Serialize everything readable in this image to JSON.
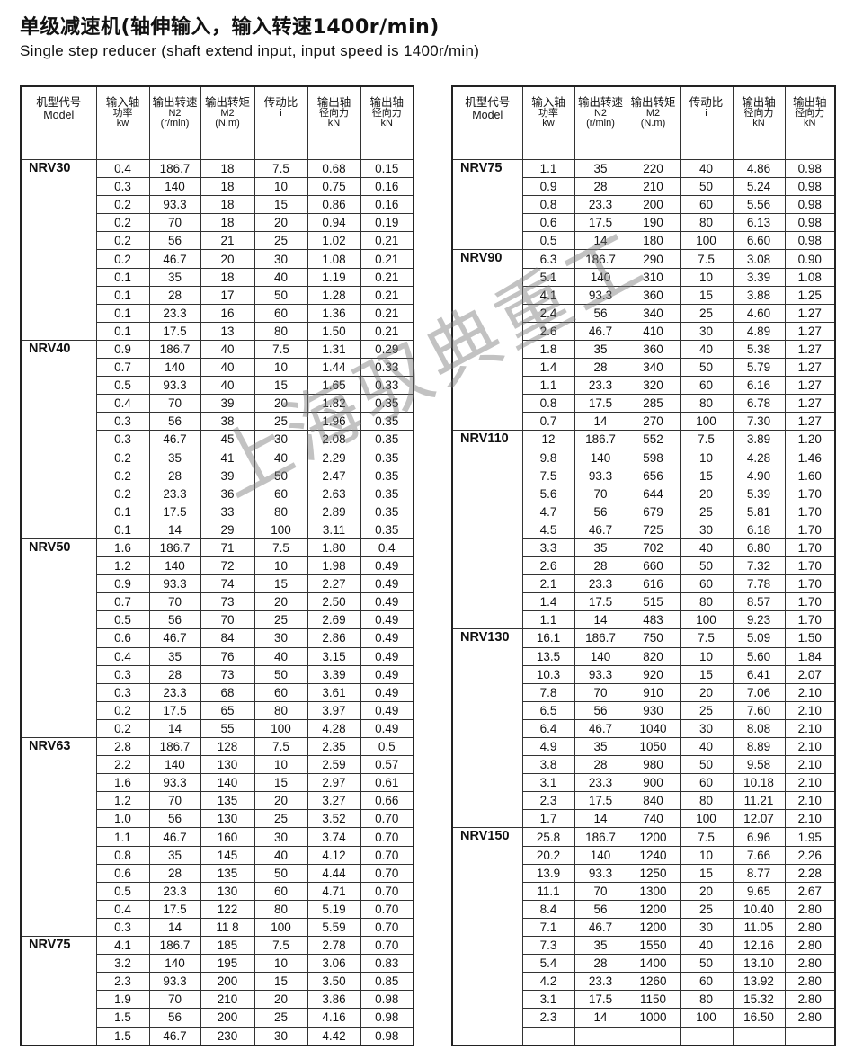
{
  "title": "单级减速机(轴伸输入，输入转速1400r/min)",
  "subtitle": "Single step reducer (shaft extend input,  input speed is 1400r/min)",
  "watermark": "上海驭典重工",
  "headers": [
    {
      "line1": "机型代号",
      "line2": "Model",
      "line3": ""
    },
    {
      "line1": "输入轴",
      "line2": "功率",
      "line3": "kw"
    },
    {
      "line1": "输出转速",
      "line2": "N2",
      "line3": "(r/min)"
    },
    {
      "line1": "输出转矩",
      "line2": "M2",
      "line3": "(N.m)"
    },
    {
      "line1": "传动比",
      "line2": "i",
      "line3": ""
    },
    {
      "line1": "输出轴",
      "line2": "径向力",
      "line3": "kN"
    },
    {
      "line1": "输出轴",
      "line2": "径向力",
      "line3": "kN"
    }
  ],
  "tables": [
    {
      "groups": [
        {
          "model": "NRV30",
          "rows": [
            [
              "0.4",
              "186.7",
              "18",
              "7.5",
              "0.68",
              "0.15"
            ],
            [
              "0.3",
              "140",
              "18",
              "10",
              "0.75",
              "0.16"
            ],
            [
              "0.2",
              "93.3",
              "18",
              "15",
              "0.86",
              "0.16"
            ],
            [
              "0.2",
              "70",
              "18",
              "20",
              "0.94",
              "0.19"
            ],
            [
              "0.2",
              "56",
              "21",
              "25",
              "1.02",
              "0.21"
            ],
            [
              "0.2",
              "46.7",
              "20",
              "30",
              "1.08",
              "0.21"
            ],
            [
              "0.1",
              "35",
              "18",
              "40",
              "1.19",
              "0.21"
            ],
            [
              "0.1",
              "28",
              "17",
              "50",
              "1.28",
              "0.21"
            ],
            [
              "0.1",
              "23.3",
              "16",
              "60",
              "1.36",
              "0.21"
            ],
            [
              "0.1",
              "17.5",
              "13",
              "80",
              "1.50",
              "0.21"
            ]
          ]
        },
        {
          "model": "NRV40",
          "rows": [
            [
              "0.9",
              "186.7",
              "40",
              "7.5",
              "1.31",
              "0.29"
            ],
            [
              "0.7",
              "140",
              "40",
              "10",
              "1.44",
              "0.33"
            ],
            [
              "0.5",
              "93.3",
              "40",
              "15",
              "1.65",
              "0.33"
            ],
            [
              "0.4",
              "70",
              "39",
              "20",
              "1.82",
              "0.35"
            ],
            [
              "0.3",
              "56",
              "38",
              "25",
              "1.96",
              "0.35"
            ],
            [
              "0.3",
              "46.7",
              "45",
              "30",
              "2.08",
              "0.35"
            ],
            [
              "0.2",
              "35",
              "41",
              "40",
              "2.29",
              "0.35"
            ],
            [
              "0.2",
              "28",
              "39",
              "50",
              "2.47",
              "0.35"
            ],
            [
              "0.2",
              "23.3",
              "36",
              "60",
              "2.63",
              "0.35"
            ],
            [
              "0.1",
              "17.5",
              "33",
              "80",
              "2.89",
              "0.35"
            ],
            [
              "0.1",
              "14",
              "29",
              "100",
              "3.11",
              "0.35"
            ]
          ]
        },
        {
          "model": "NRV50",
          "rows": [
            [
              "1.6",
              "186.7",
              "71",
              "7.5",
              "1.80",
              "0.4"
            ],
            [
              "1.2",
              "140",
              "72",
              "10",
              "1.98",
              "0.49"
            ],
            [
              "0.9",
              "93.3",
              "74",
              "15",
              "2.27",
              "0.49"
            ],
            [
              "0.7",
              "70",
              "73",
              "20",
              "2.50",
              "0.49"
            ],
            [
              "0.5",
              "56",
              "70",
              "25",
              "2.69",
              "0.49"
            ],
            [
              "0.6",
              "46.7",
              "84",
              "30",
              "2.86",
              "0.49"
            ],
            [
              "0.4",
              "35",
              "76",
              "40",
              "3.15",
              "0.49"
            ],
            [
              "0.3",
              "28",
              "73",
              "50",
              "3.39",
              "0.49"
            ],
            [
              "0.3",
              "23.3",
              "68",
              "60",
              "3.61",
              "0.49"
            ],
            [
              "0.2",
              "17.5",
              "65",
              "80",
              "3.97",
              "0.49"
            ],
            [
              "0.2",
              "14",
              "55",
              "100",
              "4.28",
              "0.49"
            ]
          ]
        },
        {
          "model": "NRV63",
          "rows": [
            [
              "2.8",
              "186.7",
              "128",
              "7.5",
              "2.35",
              "0.5"
            ],
            [
              "2.2",
              "140",
              "130",
              "10",
              "2.59",
              "0.57"
            ],
            [
              "1.6",
              "93.3",
              "140",
              "15",
              "2.97",
              "0.61"
            ],
            [
              "1.2",
              "70",
              "135",
              "20",
              "3.27",
              "0.66"
            ],
            [
              "1.0",
              "56",
              "130",
              "25",
              "3.52",
              "0.70"
            ],
            [
              "1.1",
              "46.7",
              "160",
              "30",
              "3.74",
              "0.70"
            ],
            [
              "0.8",
              "35",
              "145",
              "40",
              "4.12",
              "0.70"
            ],
            [
              "0.6",
              "28",
              "135",
              "50",
              "4.44",
              "0.70"
            ],
            [
              "0.5",
              "23.3",
              "130",
              "60",
              "4.71",
              "0.70"
            ],
            [
              "0.4",
              "17.5",
              "122",
              "80",
              "5.19",
              "0.70"
            ],
            [
              "0.3",
              "14",
              "11 8",
              "100",
              "5.59",
              "0.70"
            ]
          ]
        },
        {
          "model": "NRV75",
          "rows": [
            [
              "4.1",
              "186.7",
              "185",
              "7.5",
              "2.78",
              "0.70"
            ],
            [
              "3.2",
              "140",
              "195",
              "10",
              "3.06",
              "0.83"
            ],
            [
              "2.3",
              "93.3",
              "200",
              "15",
              "3.50",
              "0.85"
            ],
            [
              "1.9",
              "70",
              "210",
              "20",
              "3.86",
              "0.98"
            ],
            [
              "1.5",
              "56",
              "200",
              "25",
              "4.16",
              "0.98"
            ],
            [
              "1.5",
              "46.7",
              "230",
              "30",
              "4.42",
              "0.98"
            ]
          ]
        }
      ]
    },
    {
      "groups": [
        {
          "model": "NRV75",
          "rows": [
            [
              "1.1",
              "35",
              "220",
              "40",
              "4.86",
              "0.98"
            ],
            [
              "0.9",
              "28",
              "210",
              "50",
              "5.24",
              "0.98"
            ],
            [
              "0.8",
              "23.3",
              "200",
              "60",
              "5.56",
              "0.98"
            ],
            [
              "0.6",
              "17.5",
              "190",
              "80",
              "6.13",
              "0.98"
            ],
            [
              "0.5",
              "14",
              "180",
              "100",
              "6.60",
              "0.98"
            ]
          ]
        },
        {
          "model": "NRV90",
          "rows": [
            [
              "6.3",
              "186.7",
              "290",
              "7.5",
              "3.08",
              "0.90"
            ],
            [
              "5.1",
              "140",
              "310",
              "10",
              "3.39",
              "1.08"
            ],
            [
              "4.1",
              "93.3",
              "360",
              "15",
              "3.88",
              "1.25"
            ],
            [
              "2.4",
              "56",
              "340",
              "25",
              "4.60",
              "1.27"
            ],
            [
              "2.6",
              "46.7",
              "410",
              "30",
              "4.89",
              "1.27"
            ],
            [
              "1.8",
              "35",
              "360",
              "40",
              "5.38",
              "1.27"
            ],
            [
              "1.4",
              "28",
              "340",
              "50",
              "5.79",
              "1.27"
            ],
            [
              "1.1",
              "23.3",
              "320",
              "60",
              "6.16",
              "1.27"
            ],
            [
              "0.8",
              "17.5",
              "285",
              "80",
              "6.78",
              "1.27"
            ],
            [
              "0.7",
              "14",
              "270",
              "100",
              "7.30",
              "1.27"
            ]
          ]
        },
        {
          "model": "NRV110",
          "rows": [
            [
              "12",
              "186.7",
              "552",
              "7.5",
              "3.89",
              "1.20"
            ],
            [
              "9.8",
              "140",
              "598",
              "10",
              "4.28",
              "1.46"
            ],
            [
              "7.5",
              "93.3",
              "656",
              "15",
              "4.90",
              "1.60"
            ],
            [
              "5.6",
              "70",
              "644",
              "20",
              "5.39",
              "1.70"
            ],
            [
              "4.7",
              "56",
              "679",
              "25",
              "5.81",
              "1.70"
            ],
            [
              "4.5",
              "46.7",
              "725",
              "30",
              "6.18",
              "1.70"
            ],
            [
              "3.3",
              "35",
              "702",
              "40",
              "6.80",
              "1.70"
            ],
            [
              "2.6",
              "28",
              "660",
              "50",
              "7.32",
              "1.70"
            ],
            [
              "2.1",
              "23.3",
              "616",
              "60",
              "7.78",
              "1.70"
            ],
            [
              "1.4",
              "17.5",
              "515",
              "80",
              "8.57",
              "1.70"
            ],
            [
              "1.1",
              "14",
              "483",
              "100",
              "9.23",
              "1.70"
            ]
          ]
        },
        {
          "model": "NRV130",
          "rows": [
            [
              "16.1",
              "186.7",
              "750",
              "7.5",
              "5.09",
              "1.50"
            ],
            [
              "13.5",
              "140",
              "820",
              "10",
              "5.60",
              "1.84"
            ],
            [
              "10.3",
              "93.3",
              "920",
              "15",
              "6.41",
              "2.07"
            ],
            [
              "7.8",
              "70",
              "910",
              "20",
              "7.06",
              "2.10"
            ],
            [
              "6.5",
              "56",
              "930",
              "25",
              "7.60",
              "2.10"
            ],
            [
              "6.4",
              "46.7",
              "1040",
              "30",
              "8.08",
              "2.10"
            ],
            [
              "4.9",
              "35",
              "1050",
              "40",
              "8.89",
              "2.10"
            ],
            [
              "3.8",
              "28",
              "980",
              "50",
              "9.58",
              "2.10"
            ],
            [
              "3.1",
              "23.3",
              "900",
              "60",
              "10.18",
              "2.10"
            ],
            [
              "2.3",
              "17.5",
              "840",
              "80",
              "11.21",
              "2.10"
            ],
            [
              "1.7",
              "14",
              "740",
              "100",
              "12.07",
              "2.10"
            ]
          ]
        },
        {
          "model": "NRV150",
          "rows": [
            [
              "25.8",
              "186.7",
              "1200",
              "7.5",
              "6.96",
              "1.95"
            ],
            [
              "20.2",
              "140",
              "1240",
              "10",
              "7.66",
              "2.26"
            ],
            [
              "13.9",
              "93.3",
              "1250",
              "15",
              "8.77",
              "2.28"
            ],
            [
              "11.1",
              "70",
              "1300",
              "20",
              "9.65",
              "2.67"
            ],
            [
              "8.4",
              "56",
              "1200",
              "25",
              "10.40",
              "2.80"
            ],
            [
              "7.1",
              "46.7",
              "1200",
              "30",
              "11.05",
              "2.80"
            ],
            [
              "7.3",
              "35",
              "1550",
              "40",
              "12.16",
              "2.80"
            ],
            [
              "5.4",
              "28",
              "1400",
              "50",
              "13.10",
              "2.80"
            ],
            [
              "4.2",
              "23.3",
              "1260",
              "60",
              "13.92",
              "2.80"
            ],
            [
              "3.1",
              "17.5",
              "1150",
              "80",
              "15.32",
              "2.80"
            ],
            [
              "2.3",
              "14",
              "1000",
              "100",
              "16.50",
              "2.80"
            ],
            [
              "",
              "",
              "",
              "",
              "",
              ""
            ]
          ]
        }
      ]
    }
  ]
}
